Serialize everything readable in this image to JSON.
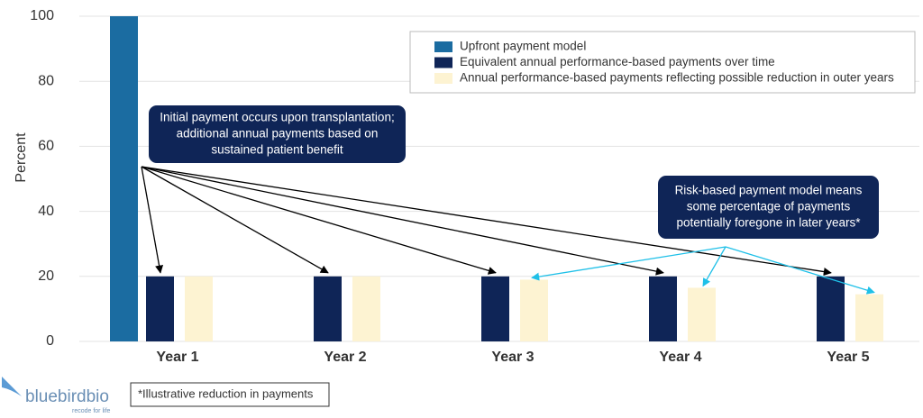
{
  "chart_data": {
    "type": "bar",
    "ylabel": "Percent",
    "categories": [
      "Year 1",
      "Year 2",
      "Year 3",
      "Year 4",
      "Year 5"
    ],
    "series": [
      {
        "name": "Upfront payment model",
        "color": "#1b6ca1",
        "values": [
          100,
          null,
          null,
          null,
          null
        ]
      },
      {
        "name": "Equivalent annual performance-based payments over time",
        "color": "#0f2557",
        "values": [
          20,
          20,
          20,
          20,
          20
        ]
      },
      {
        "name": "Annual performance-based payments reflecting possible reduction in outer years",
        "color": "#fdf3d2",
        "values": [
          20,
          20,
          19,
          16.5,
          14.5
        ]
      }
    ],
    "ylim": [
      0,
      100
    ],
    "yticks": [
      0,
      20,
      40,
      60,
      80,
      100
    ],
    "grid": true,
    "annotations": [
      {
        "lines": [
          "Initial payment occurs upon transplantation;",
          "additional annual payments based on",
          "sustained patient benefit"
        ]
      },
      {
        "lines": [
          "Risk-based payment model means",
          "some percentage of payments",
          "potentially foregone in later years*"
        ]
      }
    ],
    "footnote": "*Illustrative reduction in payments"
  },
  "logo": {
    "name": "bluebirdbio",
    "tagline": "recode for life"
  }
}
